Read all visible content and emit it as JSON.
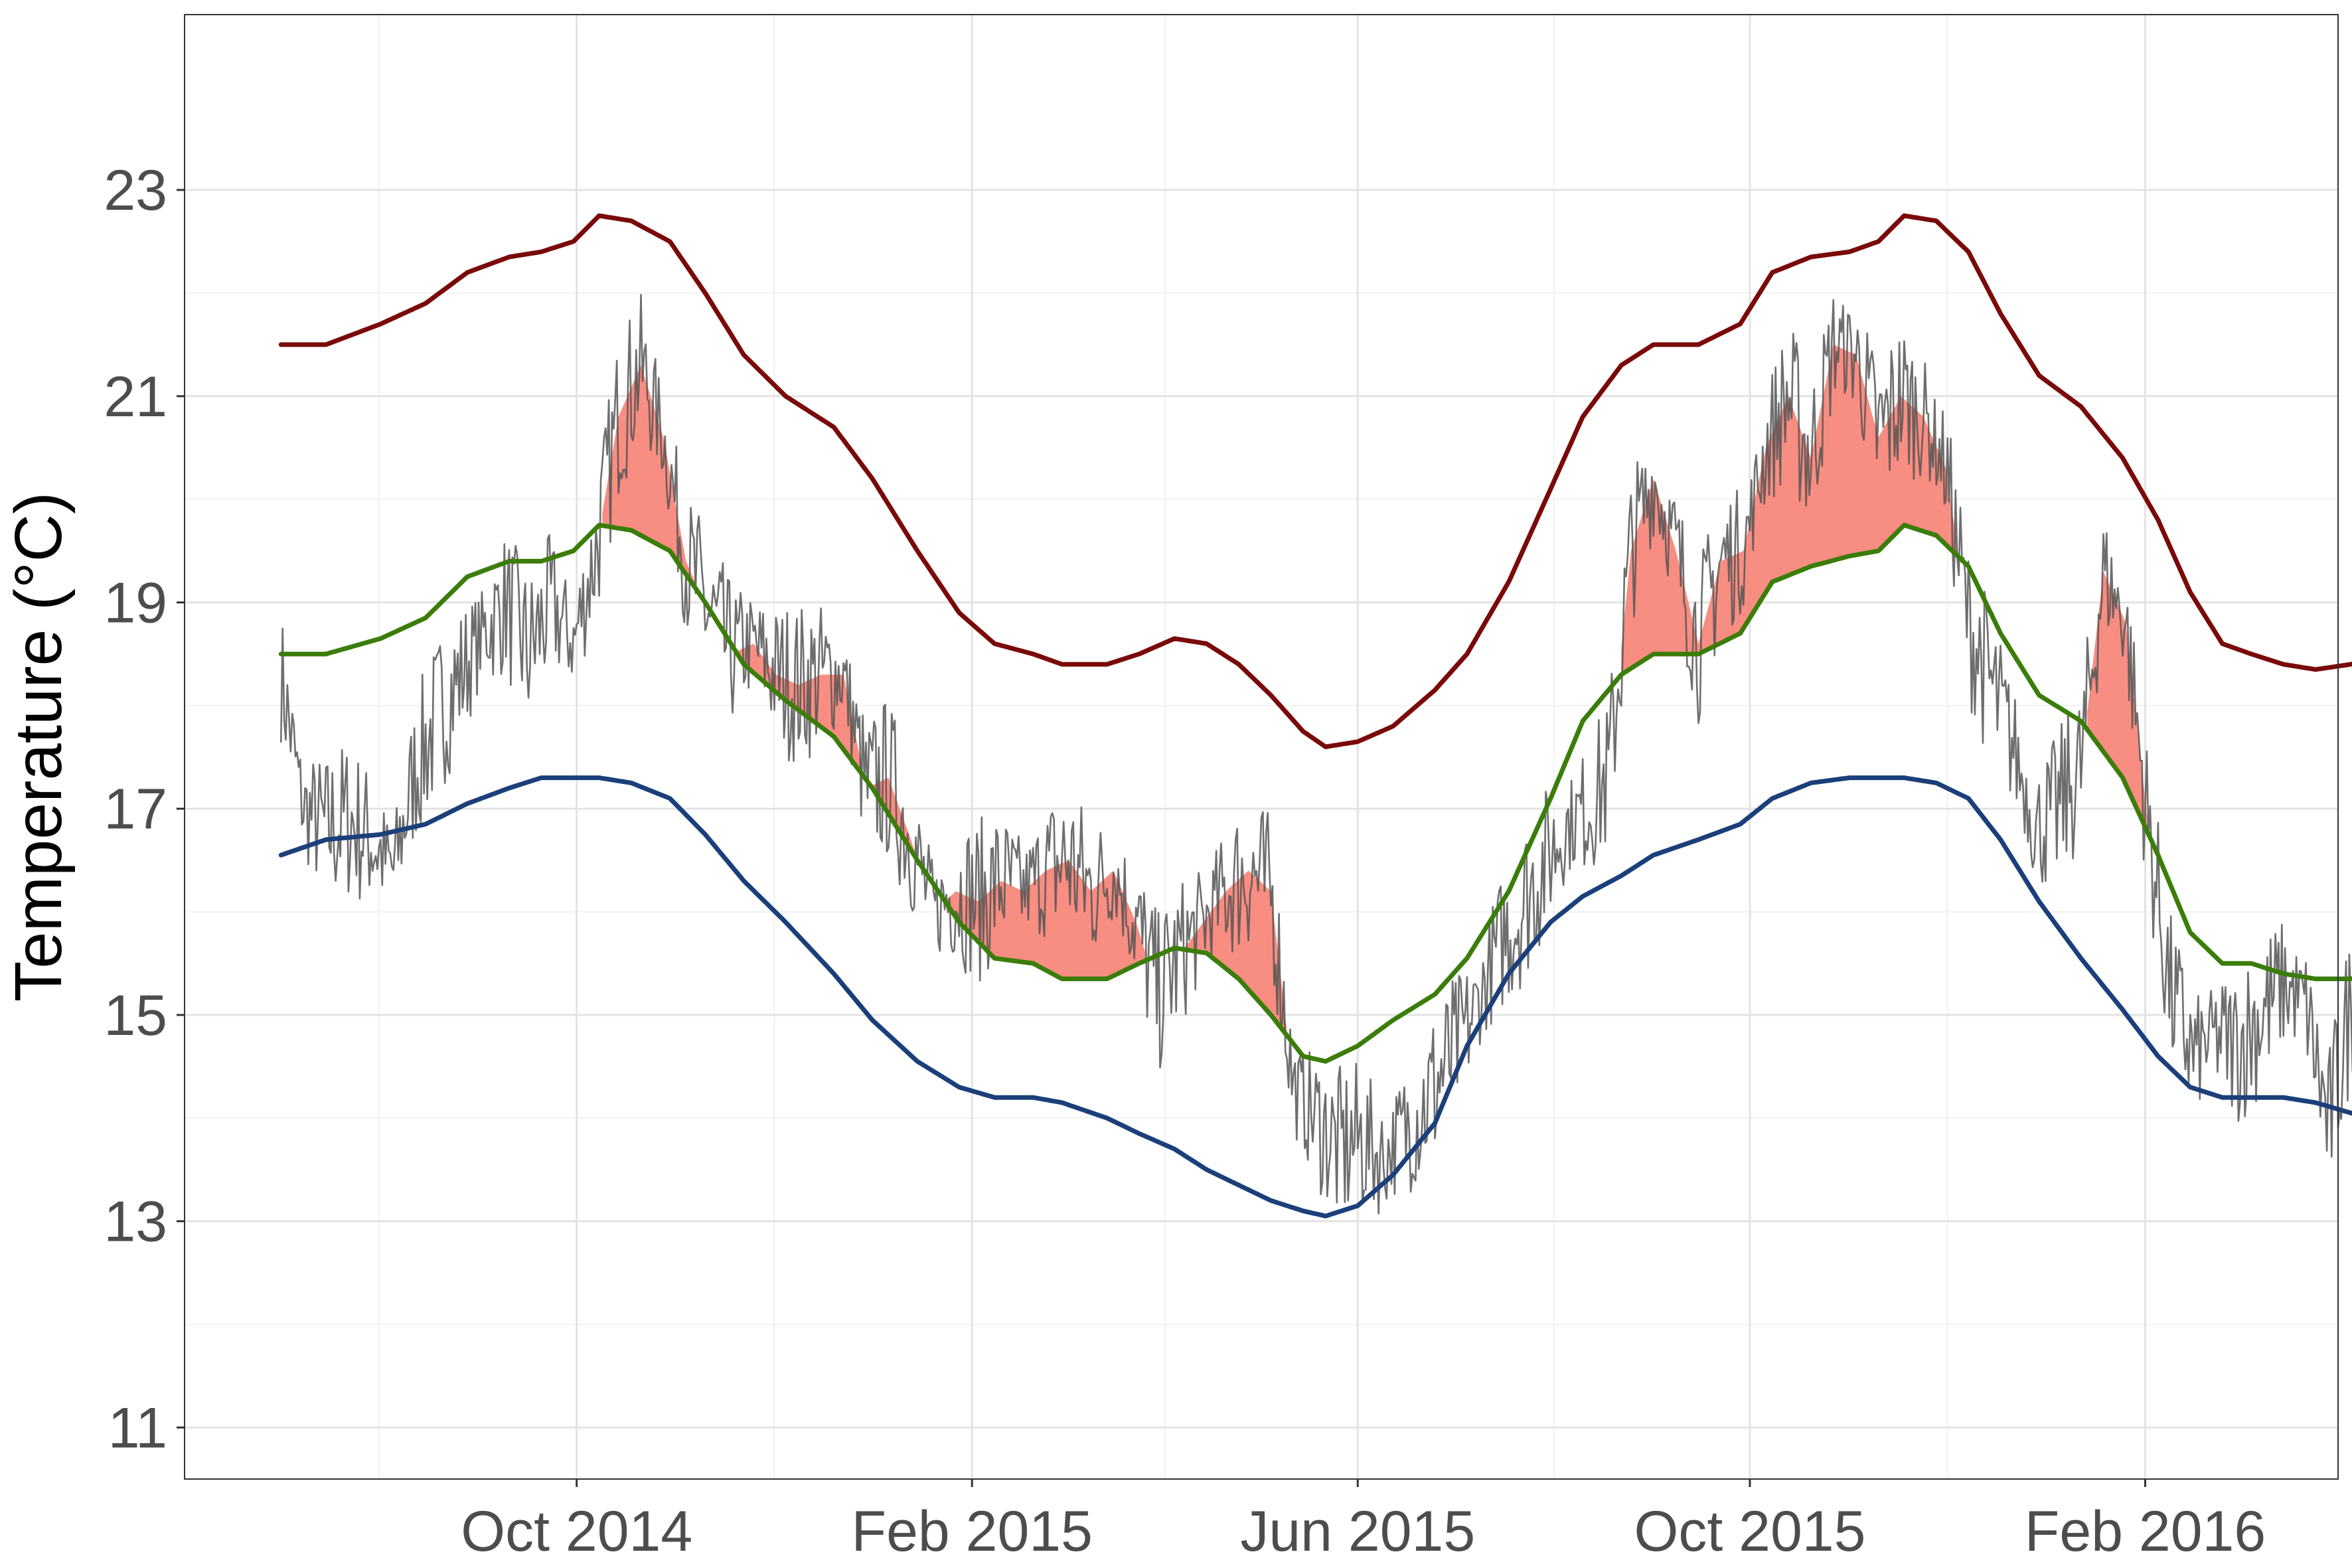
{
  "chart_data": {
    "type": "line",
    "ylabel": "Temperature (°C)",
    "xlabel": "",
    "xlim": [
      "2014-06-01",
      "2016-04-01"
    ],
    "ylim": [
      10.5,
      24.7
    ],
    "x_ticks": [
      {
        "date": "2014-10-01",
        "label": "Oct 2014"
      },
      {
        "date": "2015-02-01",
        "label": "Feb 2015"
      },
      {
        "date": "2015-06-01",
        "label": "Jun 2015"
      },
      {
        "date": "2015-10-01",
        "label": "Oct 2015"
      },
      {
        "date": "2016-02-01",
        "label": "Feb 2016"
      }
    ],
    "y_ticks": [
      11,
      13,
      15,
      17,
      19,
      21,
      23
    ],
    "grid": true,
    "legend": "none",
    "series": [
      {
        "key": "upper",
        "color": "#7a0a0a",
        "points": [
          [
            "2014-07-01",
            21.5
          ],
          [
            "2014-07-15",
            21.5
          ],
          [
            "2014-08-01",
            21.7
          ],
          [
            "2014-08-15",
            21.9
          ],
          [
            "2014-08-28",
            22.2
          ],
          [
            "2014-09-10",
            22.35
          ],
          [
            "2014-09-20",
            22.4
          ],
          [
            "2014-09-30",
            22.5
          ],
          [
            "2014-10-08",
            22.75
          ],
          [
            "2014-10-18",
            22.7
          ],
          [
            "2014-10-30",
            22.5
          ],
          [
            "2014-11-10",
            22.0
          ],
          [
            "2014-11-22",
            21.4
          ],
          [
            "2014-12-05",
            21.0
          ],
          [
            "2014-12-20",
            20.7
          ],
          [
            "2015-01-01",
            20.2
          ],
          [
            "2015-01-15",
            19.5
          ],
          [
            "2015-01-28",
            18.9
          ],
          [
            "2015-02-08",
            18.6
          ],
          [
            "2015-02-20",
            18.5
          ],
          [
            "2015-03-01",
            18.4
          ],
          [
            "2015-03-15",
            18.4
          ],
          [
            "2015-03-25",
            18.5
          ],
          [
            "2015-04-05",
            18.65
          ],
          [
            "2015-04-15",
            18.6
          ],
          [
            "2015-04-25",
            18.4
          ],
          [
            "2015-05-05",
            18.1
          ],
          [
            "2015-05-15",
            17.75
          ],
          [
            "2015-05-22",
            17.6
          ],
          [
            "2015-06-01",
            17.65
          ],
          [
            "2015-06-12",
            17.8
          ],
          [
            "2015-06-25",
            18.15
          ],
          [
            "2015-07-05",
            18.5
          ],
          [
            "2015-07-18",
            19.2
          ],
          [
            "2015-07-31",
            20.1
          ],
          [
            "2015-08-10",
            20.8
          ],
          [
            "2015-08-22",
            21.3
          ],
          [
            "2015-09-01",
            21.5
          ],
          [
            "2015-09-15",
            21.5
          ],
          [
            "2015-09-28",
            21.7
          ],
          [
            "2015-10-08",
            22.2
          ],
          [
            "2015-10-20",
            22.35
          ],
          [
            "2015-11-01",
            22.4
          ],
          [
            "2015-11-10",
            22.5
          ],
          [
            "2015-11-18",
            22.75
          ],
          [
            "2015-11-28",
            22.7
          ],
          [
            "2015-12-08",
            22.4
          ],
          [
            "2015-12-18",
            21.8
          ],
          [
            "2015-12-30",
            21.2
          ],
          [
            "2016-01-12",
            20.9
          ],
          [
            "2016-01-25",
            20.4
          ],
          [
            "2016-02-05",
            19.8
          ],
          [
            "2016-02-15",
            19.1
          ],
          [
            "2016-02-25",
            18.6
          ],
          [
            "2016-03-05",
            18.5
          ],
          [
            "2016-03-15",
            18.4
          ],
          [
            "2016-03-25",
            18.35
          ],
          [
            "2016-04-05",
            18.4
          ],
          [
            "2016-04-15",
            18.5
          ],
          [
            "2016-04-20",
            18.6
          ]
        ]
      },
      {
        "key": "climatology",
        "color": "#3b7d0a",
        "points": [
          [
            "2014-07-01",
            18.5
          ],
          [
            "2014-07-15",
            18.5
          ],
          [
            "2014-08-01",
            18.65
          ],
          [
            "2014-08-15",
            18.85
          ],
          [
            "2014-08-28",
            19.25
          ],
          [
            "2014-09-10",
            19.4
          ],
          [
            "2014-09-20",
            19.4
          ],
          [
            "2014-09-30",
            19.5
          ],
          [
            "2014-10-08",
            19.75
          ],
          [
            "2014-10-18",
            19.7
          ],
          [
            "2014-10-30",
            19.5
          ],
          [
            "2014-11-10",
            19.0
          ],
          [
            "2014-11-22",
            18.4
          ],
          [
            "2014-12-05",
            18.05
          ],
          [
            "2014-12-20",
            17.7
          ],
          [
            "2015-01-01",
            17.2
          ],
          [
            "2015-01-15",
            16.5
          ],
          [
            "2015-01-28",
            15.9
          ],
          [
            "2015-02-08",
            15.55
          ],
          [
            "2015-02-20",
            15.5
          ],
          [
            "2015-03-01",
            15.35
          ],
          [
            "2015-03-15",
            15.35
          ],
          [
            "2015-03-25",
            15.5
          ],
          [
            "2015-04-05",
            15.65
          ],
          [
            "2015-04-15",
            15.6
          ],
          [
            "2015-04-25",
            15.35
          ],
          [
            "2015-05-05",
            15.0
          ],
          [
            "2015-05-15",
            14.6
          ],
          [
            "2015-05-22",
            14.55
          ],
          [
            "2015-06-01",
            14.7
          ],
          [
            "2015-06-12",
            14.95
          ],
          [
            "2015-06-25",
            15.2
          ],
          [
            "2015-07-05",
            15.55
          ],
          [
            "2015-07-18",
            16.2
          ],
          [
            "2015-07-31",
            17.1
          ],
          [
            "2015-08-10",
            17.85
          ],
          [
            "2015-08-22",
            18.3
          ],
          [
            "2015-09-01",
            18.5
          ],
          [
            "2015-09-15",
            18.5
          ],
          [
            "2015-09-28",
            18.7
          ],
          [
            "2015-10-08",
            19.2
          ],
          [
            "2015-10-20",
            19.35
          ],
          [
            "2015-11-01",
            19.45
          ],
          [
            "2015-11-10",
            19.5
          ],
          [
            "2015-11-18",
            19.75
          ],
          [
            "2015-11-28",
            19.65
          ],
          [
            "2015-12-08",
            19.35
          ],
          [
            "2015-12-18",
            18.7
          ],
          [
            "2015-12-30",
            18.1
          ],
          [
            "2016-01-12",
            17.85
          ],
          [
            "2016-01-25",
            17.3
          ],
          [
            "2016-02-05",
            16.55
          ],
          [
            "2016-02-15",
            15.8
          ],
          [
            "2016-02-25",
            15.5
          ],
          [
            "2016-03-05",
            15.5
          ],
          [
            "2016-03-15",
            15.4
          ],
          [
            "2016-03-25",
            15.35
          ],
          [
            "2016-04-05",
            15.35
          ],
          [
            "2016-04-15",
            15.45
          ],
          [
            "2016-04-20",
            15.6
          ]
        ]
      },
      {
        "key": "lower",
        "color": "#1b3f7a",
        "points": [
          [
            "2014-07-01",
            16.55
          ],
          [
            "2014-07-15",
            16.7
          ],
          [
            "2014-08-01",
            16.75
          ],
          [
            "2014-08-15",
            16.85
          ],
          [
            "2014-08-28",
            17.05
          ],
          [
            "2014-09-10",
            17.2
          ],
          [
            "2014-09-20",
            17.3
          ],
          [
            "2014-09-30",
            17.3
          ],
          [
            "2014-10-08",
            17.3
          ],
          [
            "2014-10-18",
            17.25
          ],
          [
            "2014-10-30",
            17.1
          ],
          [
            "2014-11-10",
            16.75
          ],
          [
            "2014-11-22",
            16.3
          ],
          [
            "2014-12-05",
            15.9
          ],
          [
            "2014-12-20",
            15.4
          ],
          [
            "2015-01-01",
            14.95
          ],
          [
            "2015-01-15",
            14.55
          ],
          [
            "2015-01-28",
            14.3
          ],
          [
            "2015-02-08",
            14.2
          ],
          [
            "2015-02-20",
            14.2
          ],
          [
            "2015-03-01",
            14.15
          ],
          [
            "2015-03-15",
            14.0
          ],
          [
            "2015-03-25",
            13.85
          ],
          [
            "2015-04-05",
            13.7
          ],
          [
            "2015-04-15",
            13.5
          ],
          [
            "2015-04-25",
            13.35
          ],
          [
            "2015-05-05",
            13.2
          ],
          [
            "2015-05-15",
            13.1
          ],
          [
            "2015-05-22",
            13.05
          ],
          [
            "2015-06-01",
            13.15
          ],
          [
            "2015-06-12",
            13.45
          ],
          [
            "2015-06-25",
            13.95
          ],
          [
            "2015-07-05",
            14.7
          ],
          [
            "2015-07-18",
            15.4
          ],
          [
            "2015-07-31",
            15.9
          ],
          [
            "2015-08-10",
            16.15
          ],
          [
            "2015-08-22",
            16.35
          ],
          [
            "2015-09-01",
            16.55
          ],
          [
            "2015-09-15",
            16.7
          ],
          [
            "2015-09-28",
            16.85
          ],
          [
            "2015-10-08",
            17.1
          ],
          [
            "2015-10-20",
            17.25
          ],
          [
            "2015-11-01",
            17.3
          ],
          [
            "2015-11-10",
            17.3
          ],
          [
            "2015-11-18",
            17.3
          ],
          [
            "2015-11-28",
            17.25
          ],
          [
            "2015-12-08",
            17.1
          ],
          [
            "2015-12-18",
            16.7
          ],
          [
            "2015-12-30",
            16.1
          ],
          [
            "2016-01-12",
            15.55
          ],
          [
            "2016-01-25",
            15.05
          ],
          [
            "2016-02-05",
            14.6
          ],
          [
            "2016-02-15",
            14.3
          ],
          [
            "2016-02-25",
            14.2
          ],
          [
            "2016-03-05",
            14.2
          ],
          [
            "2016-03-15",
            14.2
          ],
          [
            "2016-03-25",
            14.15
          ],
          [
            "2016-04-05",
            14.05
          ],
          [
            "2016-04-15",
            13.95
          ],
          [
            "2016-04-20",
            13.85
          ]
        ]
      },
      {
        "key": "observed",
        "color": "#555555",
        "points": [
          [
            "2014-07-01",
            18.3
          ],
          [
            "2014-07-08",
            17.0
          ],
          [
            "2014-07-15",
            16.8
          ],
          [
            "2014-07-22",
            16.9
          ],
          [
            "2014-07-29",
            16.7
          ],
          [
            "2014-08-05",
            16.4
          ],
          [
            "2014-08-12",
            17.4
          ],
          [
            "2014-08-19",
            17.9
          ],
          [
            "2014-08-26",
            18.3
          ],
          [
            "2014-09-02",
            18.7
          ],
          [
            "2014-09-09",
            19.0
          ],
          [
            "2014-09-16",
            18.5
          ],
          [
            "2014-09-23",
            19.0
          ],
          [
            "2014-09-30",
            18.6
          ],
          [
            "2014-10-07",
            19.5
          ],
          [
            "2014-10-14",
            20.8
          ],
          [
            "2014-10-21",
            21.3
          ],
          [
            "2014-10-28",
            20.6
          ],
          [
            "2014-11-04",
            19.4
          ],
          [
            "2014-11-11",
            18.9
          ],
          [
            "2014-11-18",
            18.5
          ],
          [
            "2014-11-25",
            18.6
          ],
          [
            "2014-12-02",
            18.3
          ],
          [
            "2014-12-09",
            18.2
          ],
          [
            "2014-12-16",
            18.3
          ],
          [
            "2014-12-23",
            18.3
          ],
          [
            "2014-12-30",
            17.2
          ],
          [
            "2015-01-06",
            17.3
          ],
          [
            "2015-01-13",
            16.7
          ],
          [
            "2015-01-20",
            16.0
          ],
          [
            "2015-01-27",
            16.2
          ],
          [
            "2015-02-03",
            16.1
          ],
          [
            "2015-02-10",
            16.3
          ],
          [
            "2015-02-17",
            16.2
          ],
          [
            "2015-02-24",
            16.4
          ],
          [
            "2015-03-03",
            16.5
          ],
          [
            "2015-03-10",
            16.2
          ],
          [
            "2015-03-17",
            16.4
          ],
          [
            "2015-03-24",
            15.9
          ],
          [
            "2015-03-31",
            15.2
          ],
          [
            "2015-04-07",
            15.6
          ],
          [
            "2015-04-14",
            15.9
          ],
          [
            "2015-04-21",
            16.2
          ],
          [
            "2015-04-28",
            16.4
          ],
          [
            "2015-05-05",
            16.2
          ],
          [
            "2015-05-12",
            14.3
          ],
          [
            "2015-05-19",
            14.0
          ],
          [
            "2015-05-26",
            13.7
          ],
          [
            "2015-06-02",
            13.8
          ],
          [
            "2015-06-09",
            13.6
          ],
          [
            "2015-06-16",
            13.9
          ],
          [
            "2015-06-23",
            14.2
          ],
          [
            "2015-06-30",
            14.6
          ],
          [
            "2015-07-07",
            15.0
          ],
          [
            "2015-07-14",
            15.6
          ],
          [
            "2015-07-21",
            16.0
          ],
          [
            "2015-07-28",
            16.4
          ],
          [
            "2015-08-04",
            16.8
          ],
          [
            "2015-08-11",
            17.0
          ],
          [
            "2015-08-18",
            17.3
          ],
          [
            "2015-08-25",
            19.5
          ],
          [
            "2015-09-01",
            20.2
          ],
          [
            "2015-09-08",
            19.5
          ],
          [
            "2015-09-15",
            18.6
          ],
          [
            "2015-09-22",
            19.4
          ],
          [
            "2015-09-29",
            19.5
          ],
          [
            "2015-10-06",
            20.5
          ],
          [
            "2015-10-13",
            21.0
          ],
          [
            "2015-10-20",
            20.4
          ],
          [
            "2015-10-27",
            21.5
          ],
          [
            "2015-11-03",
            21.4
          ],
          [
            "2015-11-10",
            20.6
          ],
          [
            "2015-11-17",
            21.0
          ],
          [
            "2015-11-24",
            20.8
          ],
          [
            "2015-12-01",
            20.3
          ],
          [
            "2015-12-08",
            18.8
          ],
          [
            "2015-12-15",
            18.2
          ],
          [
            "2015-12-22",
            17.6
          ],
          [
            "2015-12-29",
            16.8
          ],
          [
            "2016-01-05",
            17.0
          ],
          [
            "2016-01-12",
            17.4
          ],
          [
            "2016-01-19",
            19.3
          ],
          [
            "2016-01-26",
            18.8
          ],
          [
            "2016-02-02",
            16.8
          ],
          [
            "2016-02-09",
            15.2
          ],
          [
            "2016-02-16",
            14.6
          ],
          [
            "2016-02-23",
            14.8
          ],
          [
            "2016-03-01",
            14.7
          ],
          [
            "2016-03-08",
            15.0
          ],
          [
            "2016-03-15",
            15.3
          ],
          [
            "2016-03-22",
            15.1
          ],
          [
            "2016-03-29",
            13.9
          ],
          [
            "2016-04-05",
            15.1
          ],
          [
            "2016-04-12",
            15.8
          ],
          [
            "2016-04-19",
            16.1
          ]
        ]
      }
    ]
  }
}
